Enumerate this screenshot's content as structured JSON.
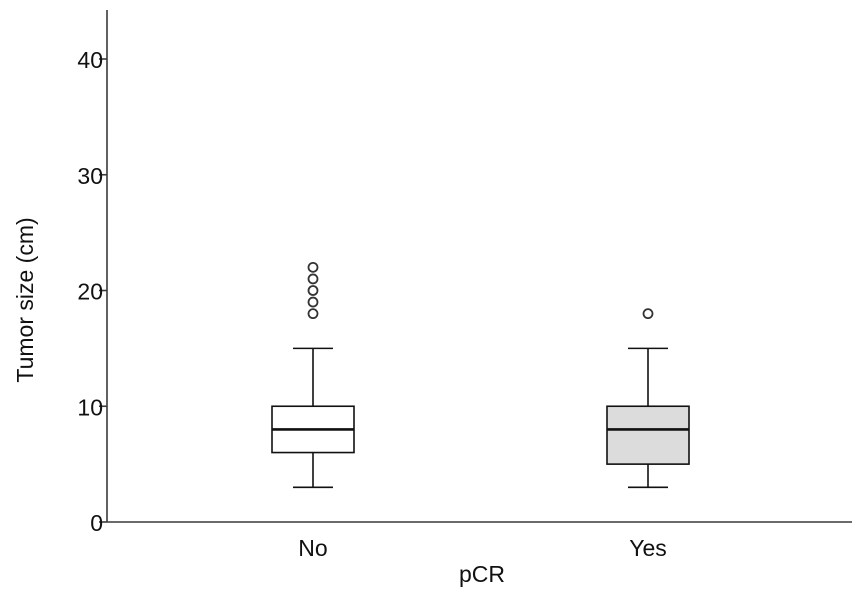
{
  "chart_data": {
    "type": "box",
    "xlabel": "pCR",
    "ylabel": "Tumor size (cm)",
    "ylim": [
      0,
      44
    ],
    "yticks": [
      0,
      10,
      20,
      30,
      40
    ],
    "categories": [
      "No",
      "Yes"
    ],
    "grid": false,
    "boxes": [
      {
        "category": "No",
        "whisker_low": 3,
        "q1": 6,
        "median": 8,
        "q3": 10,
        "whisker_high": 15,
        "outliers": [
          18,
          19,
          20,
          21,
          22
        ],
        "fill": "#ffffff"
      },
      {
        "category": "Yes",
        "whisker_low": 3,
        "q1": 5,
        "median": 8,
        "q3": 10,
        "whisker_high": 15,
        "outliers": [
          18
        ],
        "fill": "#dcdcdc"
      }
    ]
  }
}
